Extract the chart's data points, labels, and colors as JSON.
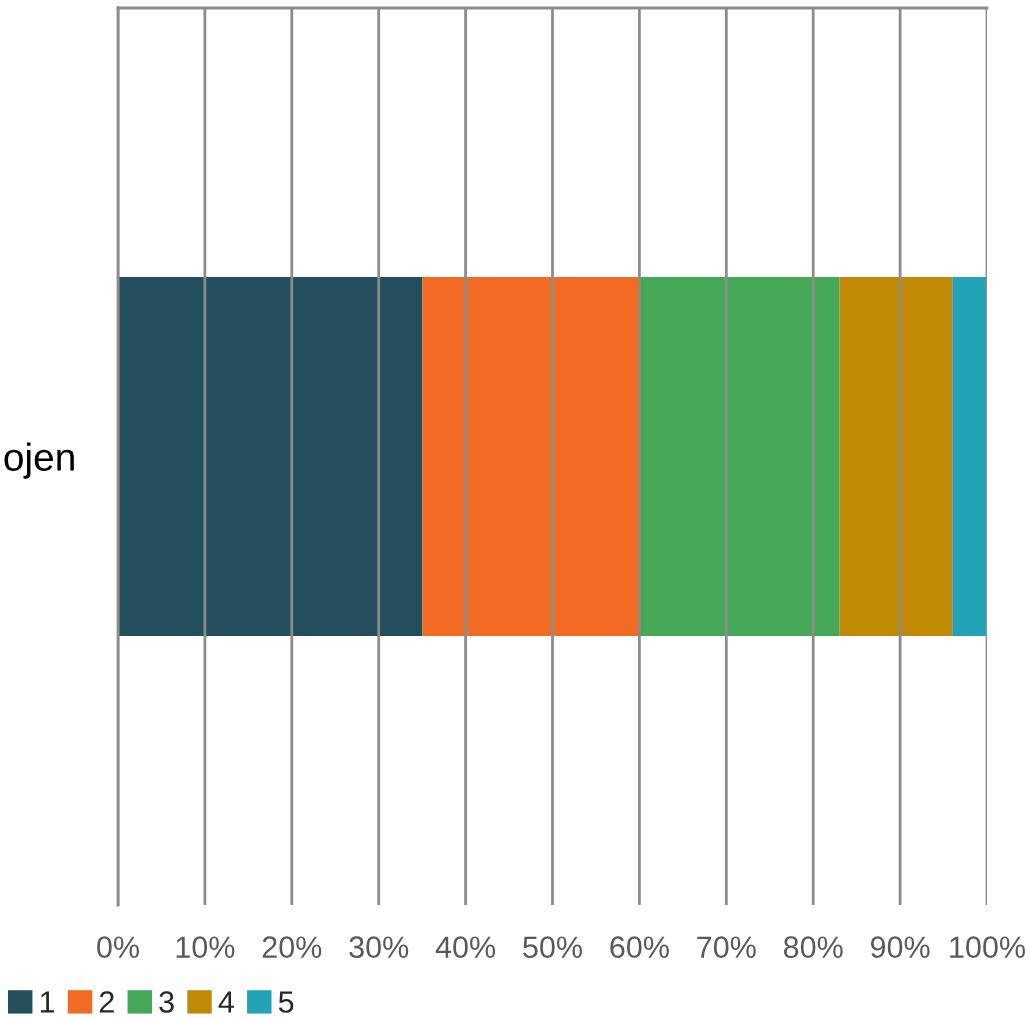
{
  "chart_data": {
    "type": "bar",
    "orientation": "horizontal",
    "stacked": true,
    "categories": [
      "ojen"
    ],
    "series": [
      {
        "name": "1",
        "color": "#234e5c",
        "values": [
          35
        ]
      },
      {
        "name": "2",
        "color": "#f26b24",
        "values": [
          25
        ]
      },
      {
        "name": "3",
        "color": "#45a857",
        "values": [
          23
        ]
      },
      {
        "name": "4",
        "color": "#c18a04",
        "values": [
          13
        ]
      },
      {
        "name": "5",
        "color": "#22a3b6",
        "values": [
          4
        ]
      }
    ],
    "xlim": [
      0,
      100
    ],
    "xticks": [
      {
        "value": 0,
        "label": "0%"
      },
      {
        "value": 10,
        "label": "10%"
      },
      {
        "value": 20,
        "label": "20%"
      },
      {
        "value": 30,
        "label": "30%"
      },
      {
        "value": 40,
        "label": "40%"
      },
      {
        "value": 50,
        "label": "50%"
      },
      {
        "value": 60,
        "label": "60%"
      },
      {
        "value": 70,
        "label": "70%"
      },
      {
        "value": 80,
        "label": "80%"
      },
      {
        "value": 90,
        "label": "90%"
      },
      {
        "value": 100,
        "label": "100%"
      }
    ],
    "grid": "x",
    "legend": "bottom left"
  }
}
